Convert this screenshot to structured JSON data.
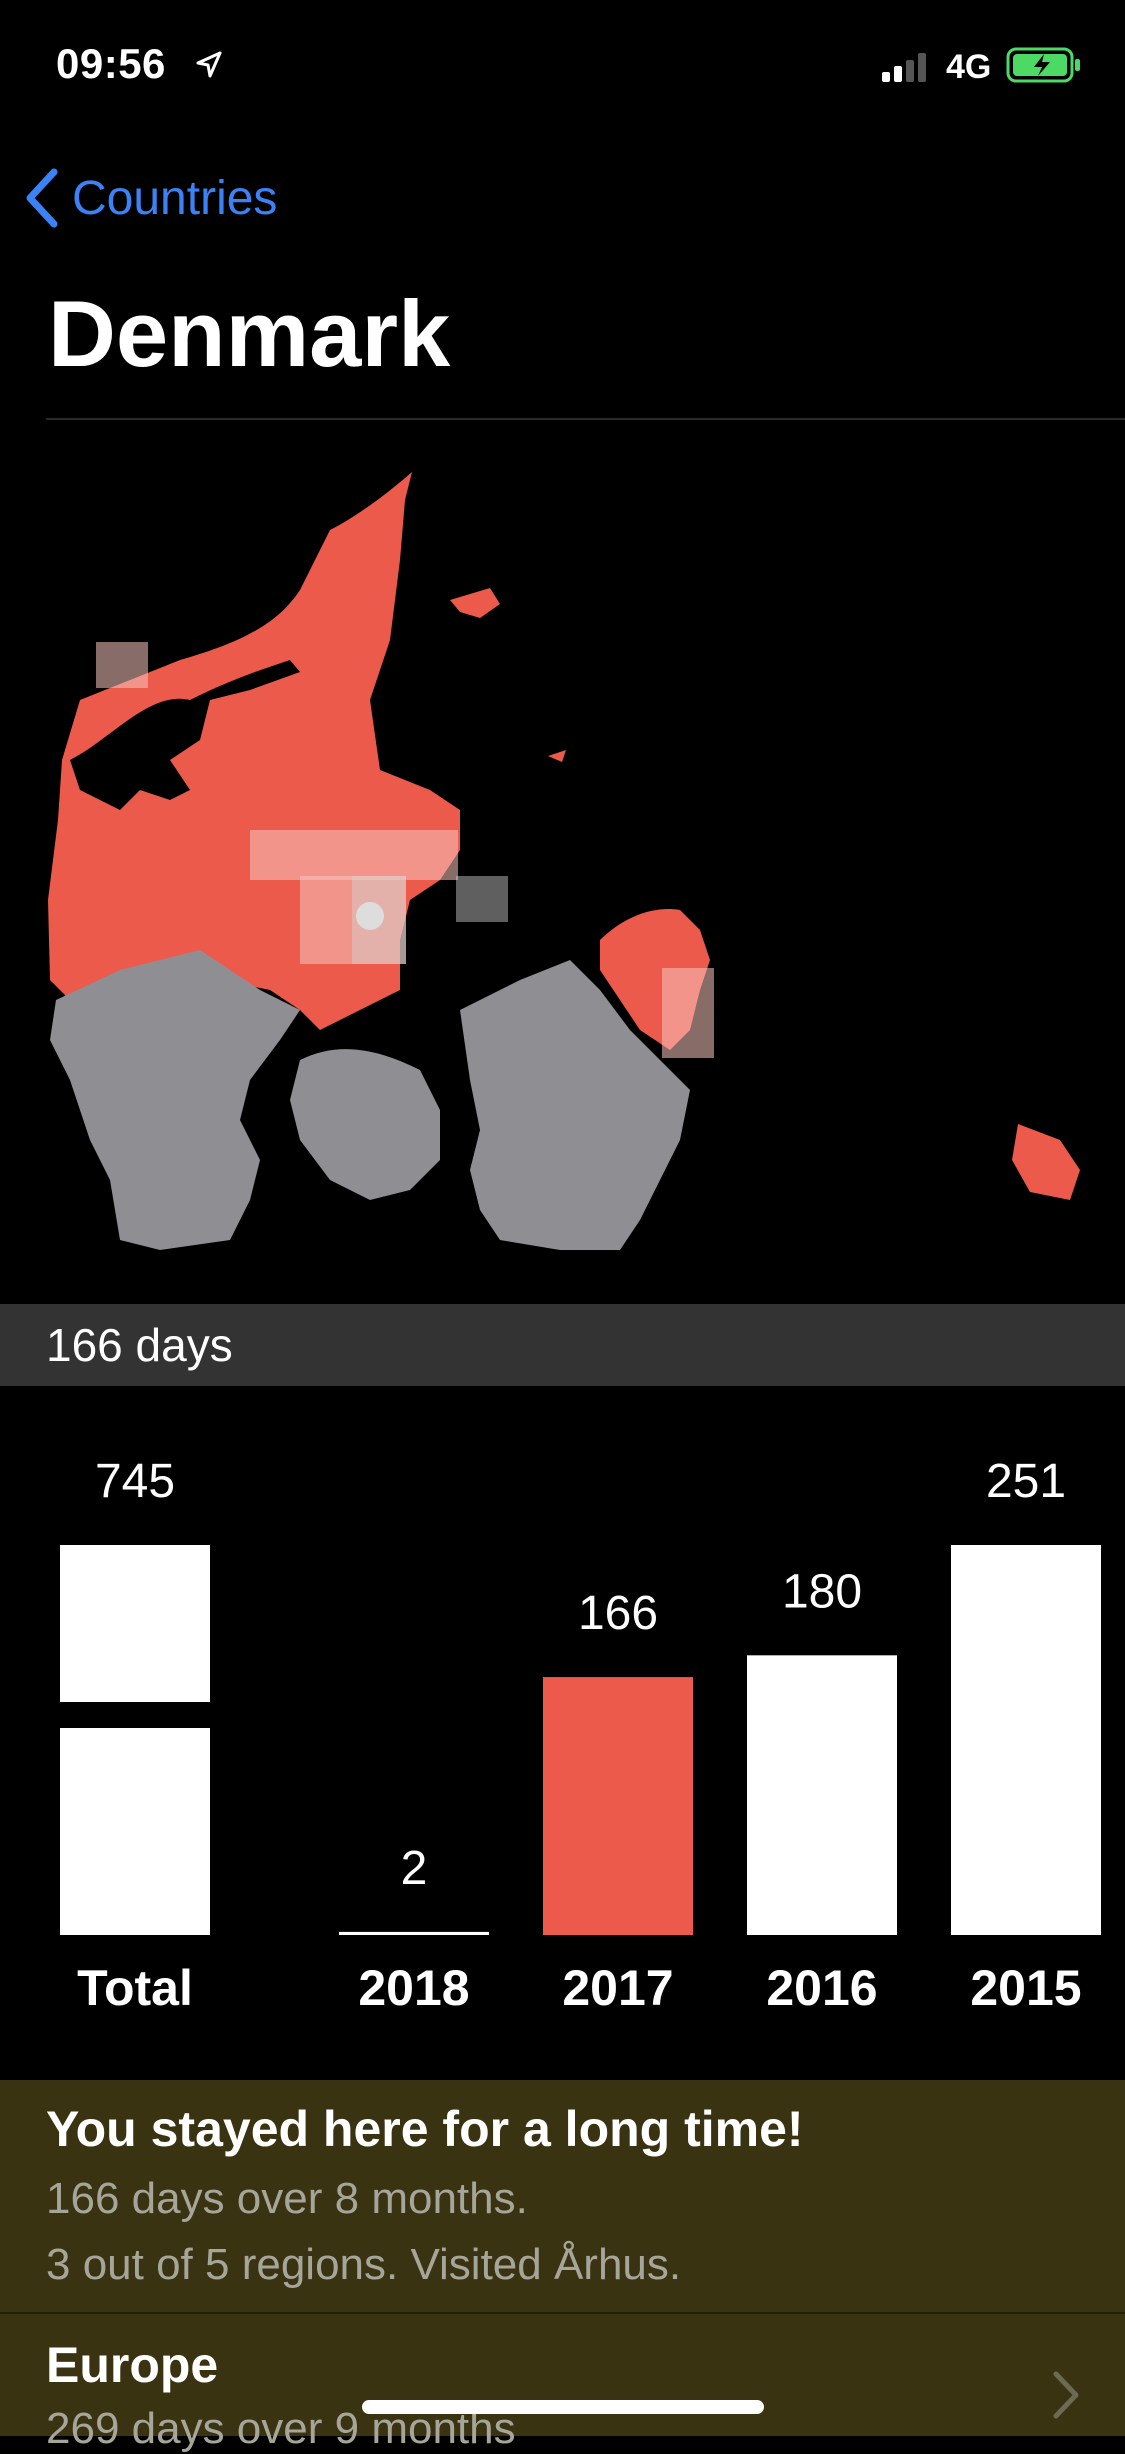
{
  "status_bar": {
    "time": "09:56",
    "network": "4G"
  },
  "nav": {
    "back_label": "Countries"
  },
  "page": {
    "title": "Denmark"
  },
  "map": {
    "land_visited_color": "#eb5a4b",
    "land_unvisited_color": "#8e8e93",
    "background": "#000000"
  },
  "summary": {
    "days_label": "166 days"
  },
  "chart_data": {
    "type": "bar",
    "categories": [
      "Total",
      "2018",
      "2017",
      "2016",
      "2015"
    ],
    "values": [
      745,
      2,
      166,
      180,
      251
    ],
    "value_labels": [
      "745",
      "2",
      "166",
      "180",
      "251"
    ],
    "highlight": "2017",
    "highlight_color": "#eb5a4b",
    "bar_color": "#ffffff"
  },
  "info": {
    "title": "You stayed here for a long time!",
    "line1": "166 days over 8 months.",
    "line2": "3 out of 5 regions. Visited Århus."
  },
  "next": {
    "title": "Europe",
    "subtitle": "269 days over 9 months"
  }
}
